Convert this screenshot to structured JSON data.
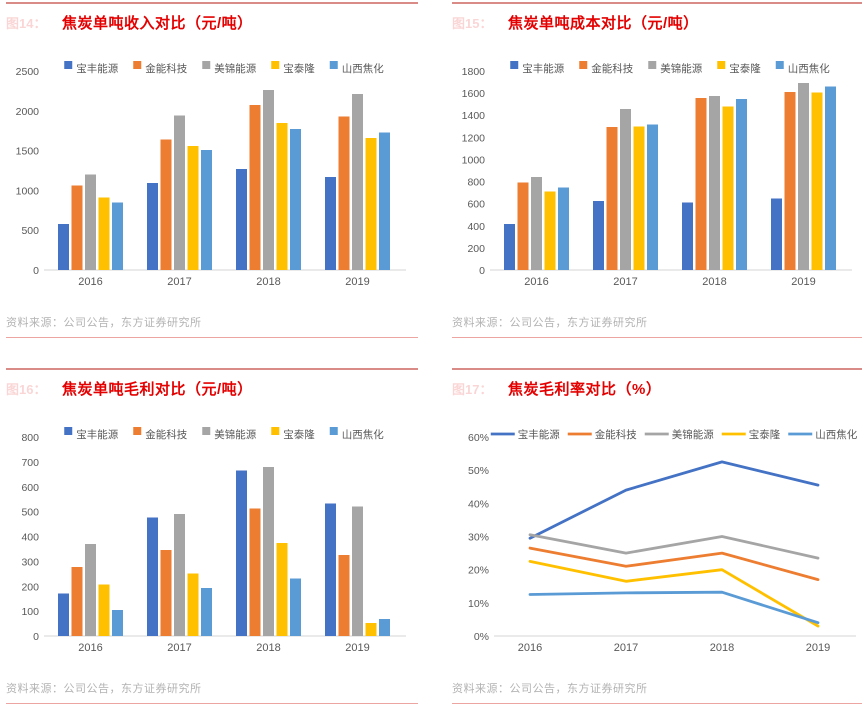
{
  "source_note": "资料来源：公司公告，东方证券研究所",
  "palette": {
    "title_red": "#e40000",
    "rule_red": "#d98b88",
    "axis_text": "#595959",
    "baseline": "#d6d6d6",
    "source_gray": "#b3b3b3"
  },
  "chart_data": [
    {
      "type": "bar",
      "fig_label": "图14：",
      "title": "焦炭单吨收入对比（元/吨）",
      "source": "资料来源：公司公告，东方证券研究所",
      "categories": [
        "2016",
        "2017",
        "2018",
        "2019"
      ],
      "series": [
        {
          "name": "宝丰能源",
          "color": "#4472C4",
          "values": [
            580,
            1095,
            1270,
            1170
          ]
        },
        {
          "name": "金能科技",
          "color": "#ED7D31",
          "values": [
            1060,
            1640,
            2070,
            1930
          ]
        },
        {
          "name": "美锦能源",
          "color": "#A5A5A5",
          "values": [
            1200,
            1940,
            2260,
            2210
          ]
        },
        {
          "name": "宝泰隆",
          "color": "#FFC000",
          "values": [
            910,
            1555,
            1845,
            1660
          ]
        },
        {
          "name": "山西焦化",
          "color": "#5B9BD5",
          "values": [
            850,
            1510,
            1770,
            1725
          ]
        }
      ],
      "ylim": [
        0,
        2500
      ],
      "ytick": 500,
      "unit": "",
      "grid": false,
      "legend_position": "top"
    },
    {
      "type": "bar",
      "fig_label": "图15：",
      "title": "焦炭单吨成本对比（元/吨）",
      "source": "资料来源：公司公告，东方证券研究所",
      "categories": [
        "2016",
        "2017",
        "2018",
        "2019"
      ],
      "series": [
        {
          "name": "宝丰能源",
          "color": "#4472C4",
          "values": [
            415,
            625,
            610,
            645
          ]
        },
        {
          "name": "金能科技",
          "color": "#ED7D31",
          "values": [
            790,
            1295,
            1555,
            1610
          ]
        },
        {
          "name": "美锦能源",
          "color": "#A5A5A5",
          "values": [
            840,
            1455,
            1575,
            1690
          ]
        },
        {
          "name": "宝泰隆",
          "color": "#FFC000",
          "values": [
            710,
            1300,
            1480,
            1605
          ]
        },
        {
          "name": "山西焦化",
          "color": "#5B9BD5",
          "values": [
            745,
            1315,
            1545,
            1660
          ]
        }
      ],
      "ylim": [
        0,
        1800
      ],
      "ytick": 200,
      "unit": "",
      "grid": false,
      "legend_position": "top"
    },
    {
      "type": "bar",
      "fig_label": "图16：",
      "title": "焦炭单吨毛利对比（元/吨）",
      "source": "资料来源：公司公告，东方证券研究所",
      "categories": [
        "2016",
        "2017",
        "2018",
        "2019"
      ],
      "series": [
        {
          "name": "宝丰能源",
          "color": "#4472C4",
          "values": [
            170,
            477,
            665,
            533
          ]
        },
        {
          "name": "金能科技",
          "color": "#ED7D31",
          "values": [
            278,
            345,
            513,
            325
          ]
        },
        {
          "name": "美锦能源",
          "color": "#A5A5A5",
          "values": [
            370,
            490,
            680,
            520
          ]
        },
        {
          "name": "宝泰隆",
          "color": "#FFC000",
          "values": [
            207,
            252,
            373,
            53
          ]
        },
        {
          "name": "山西焦化",
          "color": "#5B9BD5",
          "values": [
            105,
            193,
            232,
            68
          ]
        }
      ],
      "ylim": [
        0,
        800
      ],
      "ytick": 100,
      "unit": "",
      "grid": false,
      "legend_position": "top"
    },
    {
      "type": "line",
      "fig_label": "图17：",
      "title": "焦炭毛利率对比（%）",
      "source": "资料来源：公司公告，东方证券研究所",
      "categories": [
        "2016",
        "2017",
        "2018",
        "2019"
      ],
      "series": [
        {
          "name": "宝丰能源",
          "color": "#4472C4",
          "values": [
            29.5,
            44,
            52.5,
            45.5
          ]
        },
        {
          "name": "金能科技",
          "color": "#ED7D31",
          "values": [
            26.5,
            21,
            25,
            17
          ]
        },
        {
          "name": "美锦能源",
          "color": "#A5A5A5",
          "values": [
            30.5,
            25,
            30,
            23.5
          ]
        },
        {
          "name": "宝泰隆",
          "color": "#FFC000",
          "values": [
            22.5,
            16.5,
            20,
            3
          ]
        },
        {
          "name": "山西焦化",
          "color": "#5B9BD5",
          "values": [
            12.5,
            13,
            13.2,
            4
          ]
        }
      ],
      "ylim": [
        0,
        60
      ],
      "ytick": 10,
      "unit": "%",
      "grid": false,
      "legend_position": "top"
    }
  ]
}
